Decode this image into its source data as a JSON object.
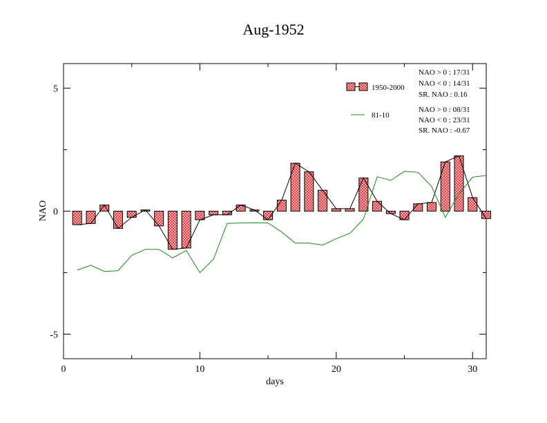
{
  "chart_data": {
    "type": "bar",
    "title": "Aug-1952",
    "xlabel": "days",
    "ylabel": "NAO",
    "xlim": [
      0,
      31
    ],
    "ylim": [
      -6,
      6
    ],
    "x_ticks": [
      0,
      10,
      20,
      30
    ],
    "y_ticks": [
      -5,
      0,
      5
    ],
    "x_tick_labels": [
      "0",
      "10",
      "20",
      "30"
    ],
    "y_tick_labels": [
      "-5",
      "0",
      "5"
    ],
    "legend_position": "top-right",
    "series": [
      {
        "name": "1950-2000",
        "kind": "bar+line",
        "color": "#e8656a",
        "x": [
          1,
          2,
          3,
          4,
          5,
          6,
          7,
          8,
          9,
          10,
          11,
          12,
          13,
          14,
          15,
          16,
          17,
          18,
          19,
          20,
          21,
          22,
          23,
          24,
          25,
          26,
          27,
          28,
          29,
          30,
          31
        ],
        "values": [
          -0.55,
          -0.5,
          0.25,
          -0.7,
          -0.25,
          0.05,
          -0.6,
          -1.55,
          -1.5,
          -0.35,
          -0.15,
          -0.15,
          0.25,
          0.05,
          -0.35,
          0.45,
          1.95,
          1.6,
          0.85,
          0.1,
          0.1,
          1.35,
          0.4,
          -0.1,
          -0.35,
          0.3,
          0.35,
          2.0,
          2.25,
          0.55,
          -0.3
        ]
      },
      {
        "name": "81-10",
        "kind": "line",
        "color": "#1a8a1a",
        "x": [
          1,
          2,
          3,
          4,
          5,
          6,
          7,
          8,
          9,
          10,
          11,
          12,
          13,
          14,
          15,
          16,
          17,
          18,
          19,
          20,
          21,
          22,
          23,
          24,
          25,
          26,
          27,
          28,
          29,
          30,
          31
        ],
        "values": [
          -2.4,
          -2.2,
          -2.45,
          -2.42,
          -1.8,
          -1.55,
          -1.55,
          -1.9,
          -1.6,
          -2.5,
          -1.95,
          -0.5,
          -0.48,
          -0.47,
          -0.48,
          -0.85,
          -1.3,
          -1.3,
          -1.38,
          -1.12,
          -0.9,
          -0.32,
          1.4,
          1.25,
          1.62,
          1.58,
          1.0,
          -0.25,
          0.7,
          1.38,
          1.45
        ]
      }
    ],
    "stats": {
      "s1950_2000": [
        "NAO > 0 : 17/31",
        "NAO < 0 : 14/31",
        "SR. NAO :  0.16"
      ],
      "s81_10": [
        "NAO > 0 : 08/31",
        "NAO < 0 : 23/31",
        "SR. NAO : -0.67"
      ]
    }
  }
}
